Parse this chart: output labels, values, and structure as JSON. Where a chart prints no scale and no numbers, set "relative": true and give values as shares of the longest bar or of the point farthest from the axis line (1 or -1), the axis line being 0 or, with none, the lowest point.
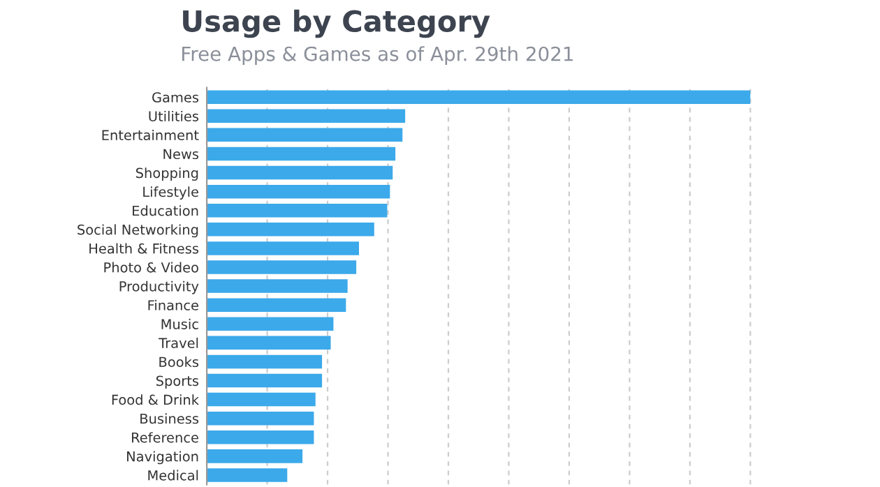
{
  "chart_data": {
    "type": "bar",
    "orientation": "horizontal",
    "relative": true,
    "title": "Usage by Category",
    "subtitle": "Free Apps & Games as of Apr. 29th 2021",
    "categories": [
      "Games",
      "Utilities",
      "Entertainment",
      "News",
      "Shopping",
      "Lifestyle",
      "Education",
      "Social Networking",
      "Health & Fitness",
      "Photo & Video",
      "Productivity",
      "Finance",
      "Music",
      "Travel",
      "Books",
      "Sports",
      "Food & Drink",
      "Business",
      "Reference",
      "Navigation",
      "Medical"
    ],
    "values": [
      1,
      0.365,
      0.36,
      0.347,
      0.342,
      0.337,
      0.332,
      0.308,
      0.28,
      0.275,
      0.259,
      0.256,
      0.233,
      0.228,
      0.212,
      0.212,
      0.2,
      0.197,
      0.197,
      0.176,
      0.148
    ],
    "color": "#3ba9ea",
    "grid": "x",
    "legend": false
  }
}
